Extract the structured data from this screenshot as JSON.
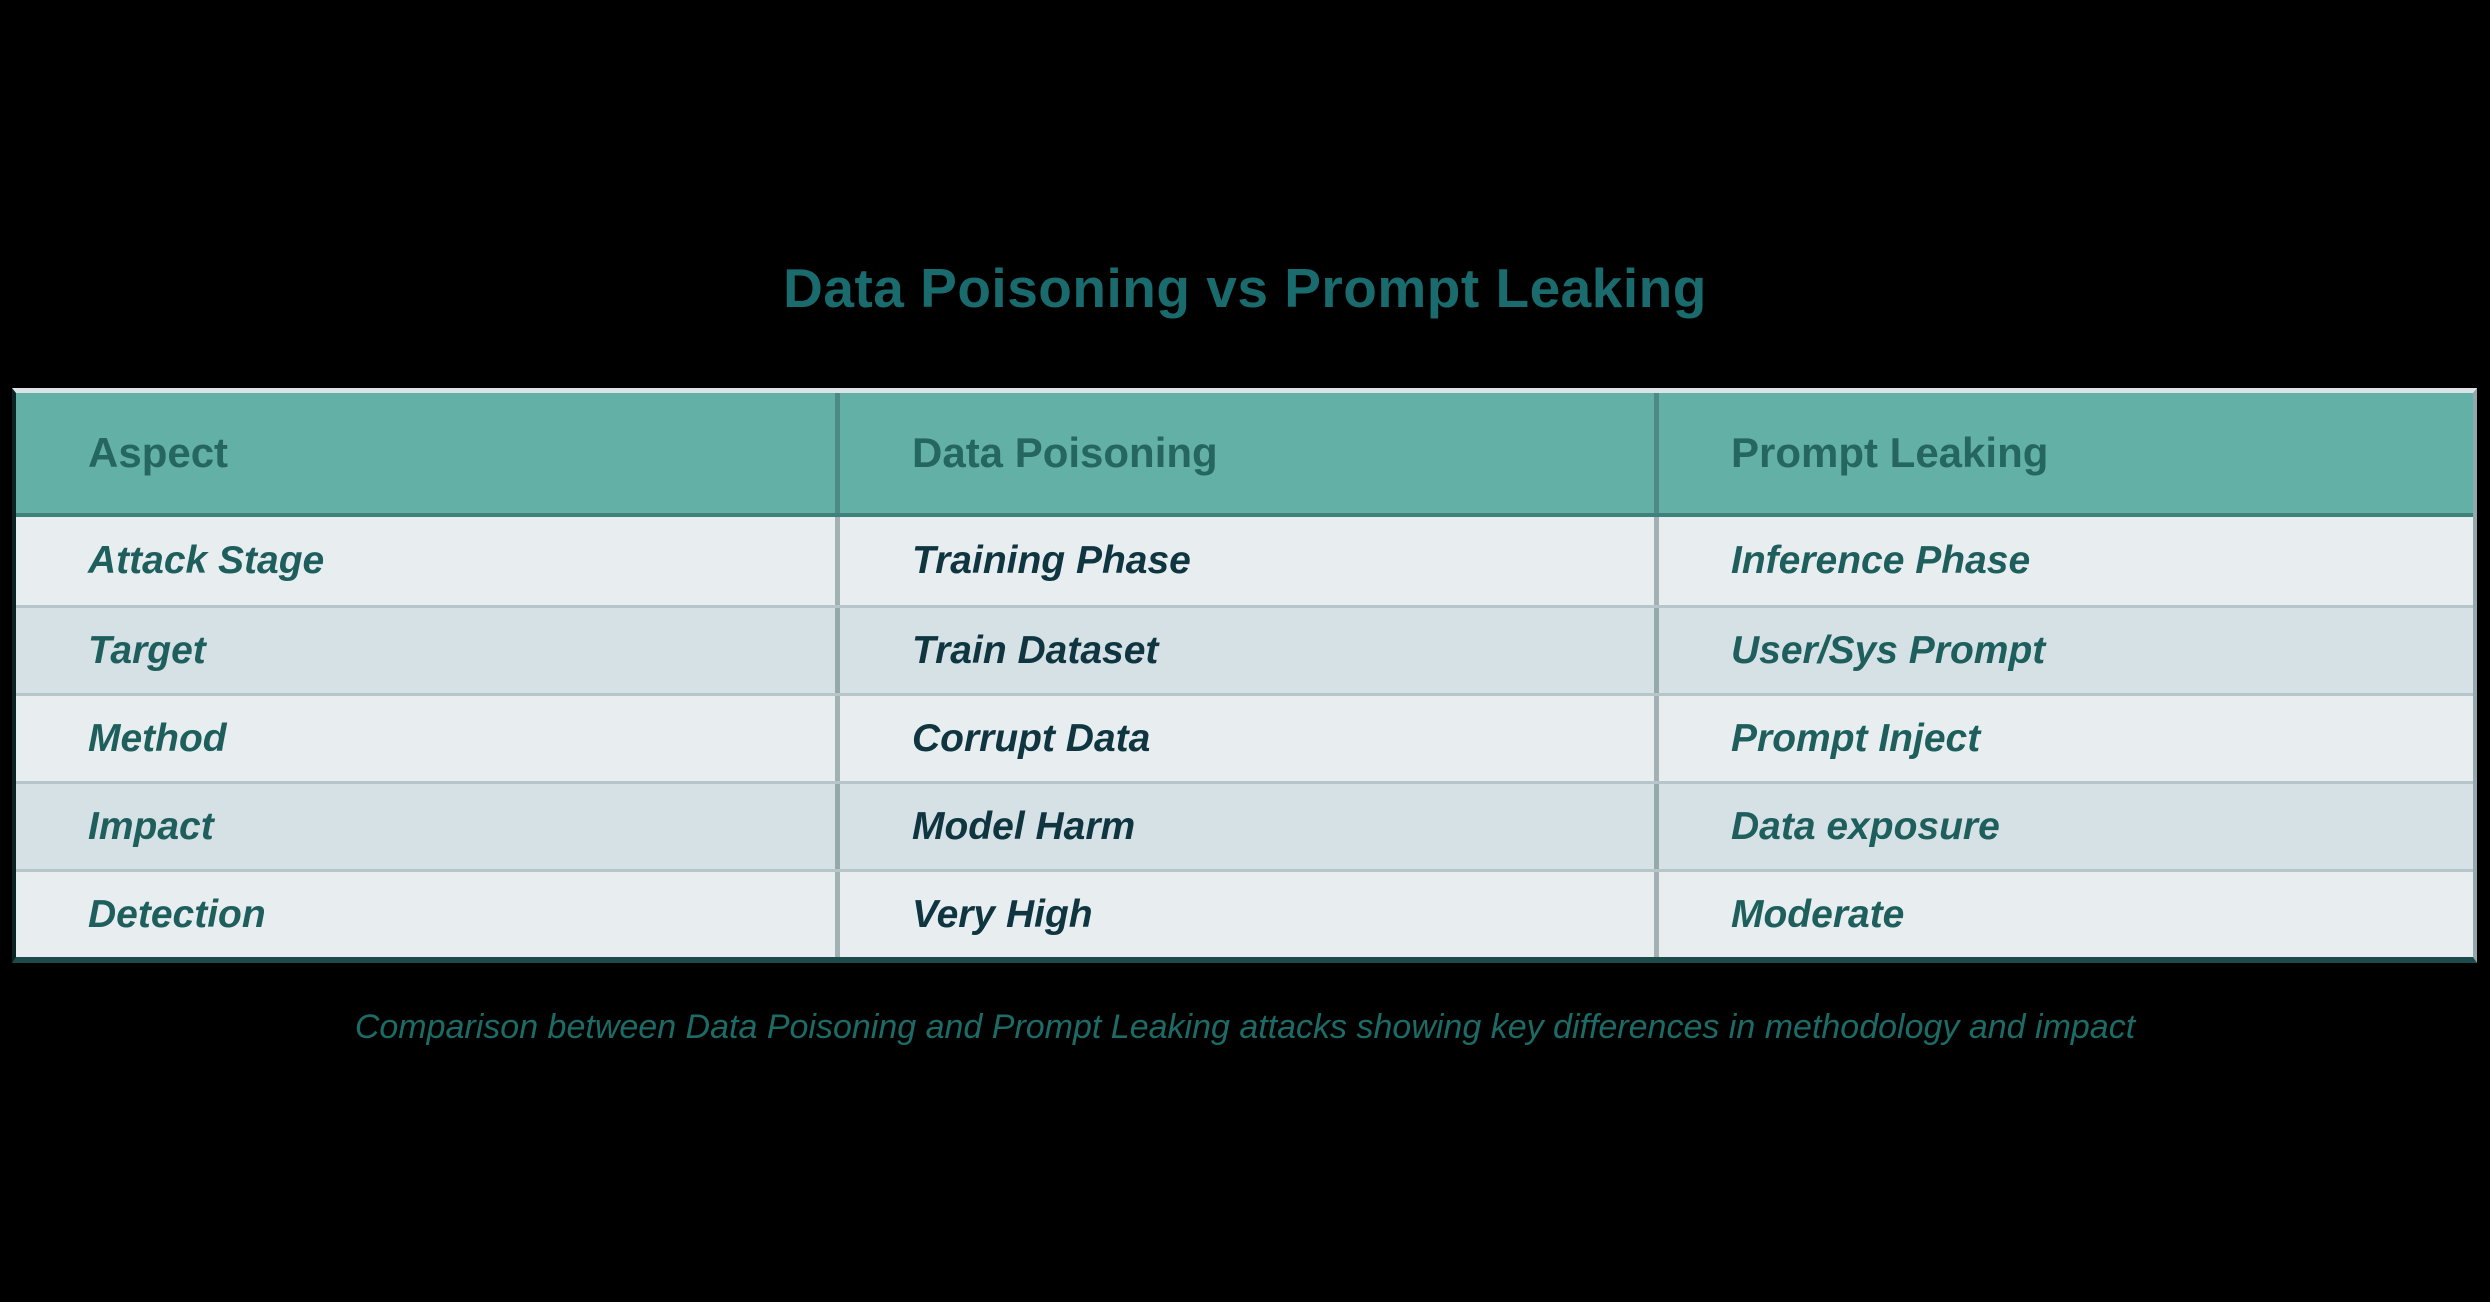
{
  "title": "Data Poisoning vs Prompt Leaking",
  "caption": "Comparison between Data Poisoning and Prompt Leaking attacks showing key differences in methodology and impact",
  "chart_data": {
    "type": "table",
    "title": "Data Poisoning vs Prompt Leaking",
    "columns": [
      "Aspect",
      "Data Poisoning",
      "Prompt Leaking"
    ],
    "rows": [
      [
        "Attack Stage",
        "Training Phase",
        "Inference Phase"
      ],
      [
        "Target",
        "Train Dataset",
        "User/Sys Prompt"
      ],
      [
        "Method",
        "Corrupt Data",
        "Prompt Inject"
      ],
      [
        "Impact",
        "Model Harm",
        "Data exposure"
      ],
      [
        "Detection",
        "Very High",
        "Moderate"
      ]
    ],
    "caption": "Comparison between Data Poisoning and Prompt Leaking attacks showing key differences in methodology and impact",
    "layout": {
      "header_position": "top",
      "row_striping": true,
      "grid": true
    }
  },
  "table": {
    "columns": [
      "Aspect",
      "Data Poisoning",
      "Prompt Leaking"
    ],
    "rows": [
      {
        "aspect": "Attack Stage",
        "data_poisoning": "Training Phase",
        "prompt_leaking": "Inference Phase"
      },
      {
        "aspect": "Target",
        "data_poisoning": "Train Dataset",
        "prompt_leaking": "User/Sys Prompt"
      },
      {
        "aspect": "Method",
        "data_poisoning": "Corrupt Data",
        "prompt_leaking": "Prompt Inject"
      },
      {
        "aspect": "Impact",
        "data_poisoning": "Model Harm",
        "prompt_leaking": "Data exposure"
      },
      {
        "aspect": "Detection",
        "data_poisoning": "Very High",
        "prompt_leaking": "Moderate"
      }
    ]
  },
  "colors": {
    "background": "#000000",
    "header_bg": "#63B1A6",
    "header_text": "#266660",
    "row_light_bg": "#E8EEF0",
    "row_dark_bg": "#D6E1E6",
    "aspect_text": "#1E5F5E",
    "data_poisoning_text": "#0E3540",
    "prompt_leaking_text": "#1E5F5E",
    "title_text": "#1A6B6E",
    "caption_text": "#1D6B66",
    "row_separator": "#B6C5CA",
    "column_separator": "#8FA1A7"
  }
}
